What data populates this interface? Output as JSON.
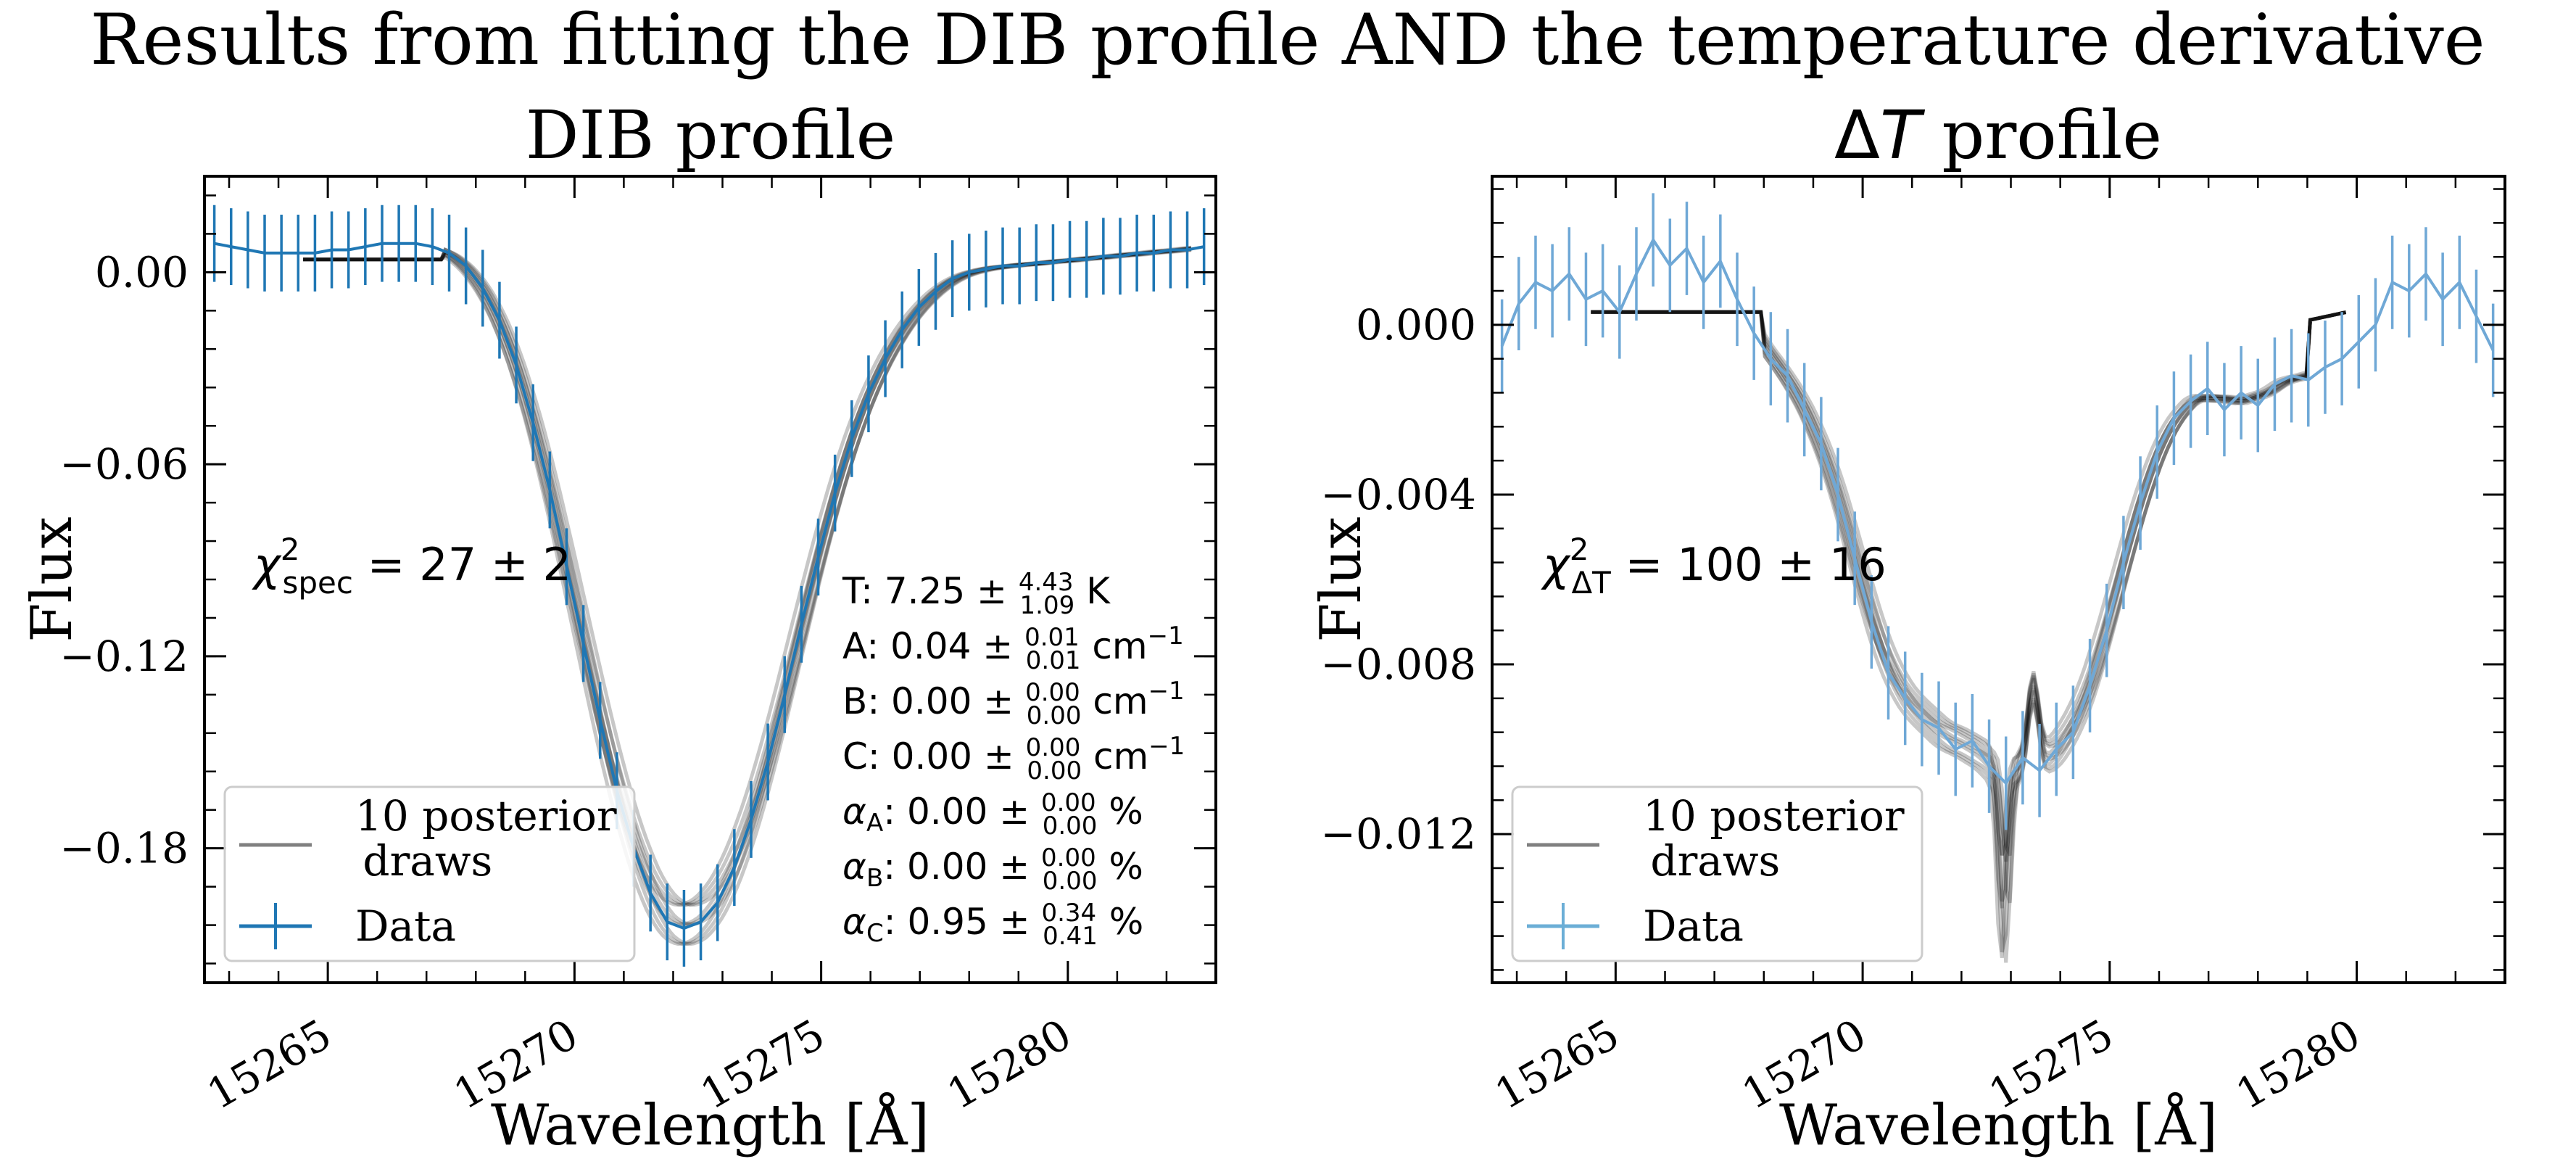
{
  "figure": {
    "suptitle": "Results from fitting the DIB profile AND the temperature derivative"
  },
  "chart_data": [
    {
      "id": "dib",
      "type": "line",
      "title": "DIB profile",
      "xlabel": "Wavelength [Å]",
      "ylabel": "Flux",
      "xlim": [
        15262.5,
        15283.0
      ],
      "ylim": [
        -0.222,
        0.03
      ],
      "xticks": [
        15265,
        15270,
        15275,
        15280
      ],
      "xtick_labels": [
        "15265",
        "15270",
        "15275",
        "15280"
      ],
      "yticks": [
        0.0,
        -0.06,
        -0.12,
        -0.18
      ],
      "ytick_labels": [
        "0.00",
        "−0.06",
        "−0.12",
        "−0.18"
      ],
      "grid": false,
      "legend_position": "lower-left",
      "legend": [
        {
          "label": "10 posterior\n draws",
          "kind": "line",
          "color": "#808080"
        },
        {
          "label": "Data",
          "kind": "errorbar",
          "color": "#1f77b4"
        }
      ],
      "annotation_chi": {
        "sym": "χ",
        "sub": "spec",
        "sup": "2",
        "rest": " = 27 ± 2"
      },
      "params": [
        {
          "sym": "T",
          "sub": "",
          "value": "7.25",
          "up": "4.43",
          "down": "1.09",
          "unit": "K",
          "unit_sup": ""
        },
        {
          "sym": "A",
          "sub": "",
          "value": "0.04",
          "up": "0.01",
          "down": "0.01",
          "unit": "cm",
          "unit_sup": "−1"
        },
        {
          "sym": "B",
          "sub": "",
          "value": "0.00",
          "up": "0.00",
          "down": "0.00",
          "unit": "cm",
          "unit_sup": "−1"
        },
        {
          "sym": "C",
          "sub": "",
          "value": "0.00",
          "up": "0.00",
          "down": "0.00",
          "unit": "cm",
          "unit_sup": "−1"
        },
        {
          "sym": "α",
          "sub": "A",
          "value": "0.00",
          "up": "0.00",
          "down": "0.00",
          "unit": "%",
          "unit_sup": ""
        },
        {
          "sym": "α",
          "sub": "B",
          "value": "0.00",
          "up": "0.00",
          "down": "0.00",
          "unit": "%",
          "unit_sup": ""
        },
        {
          "sym": "α",
          "sub": "C",
          "value": "0.95",
          "up": "0.34",
          "down": "0.41",
          "unit": "%",
          "unit_sup": ""
        }
      ],
      "data_color": "#1f77b4",
      "data_x": [
        15262.7,
        15263.04,
        15263.38,
        15263.72,
        15264.06,
        15264.4,
        15264.74,
        15265.08,
        15265.42,
        15265.76,
        15266.1,
        15266.44,
        15266.78,
        15267.12,
        15267.46,
        15267.8,
        15268.14,
        15268.48,
        15268.82,
        15269.16,
        15269.5,
        15269.84,
        15270.18,
        15270.52,
        15270.86,
        15271.2,
        15271.54,
        15271.88,
        15272.22,
        15272.56,
        15272.9,
        15273.24,
        15273.58,
        15273.92,
        15274.26,
        15274.6,
        15274.94,
        15275.28,
        15275.62,
        15275.96,
        15276.3,
        15276.64,
        15276.98,
        15277.32,
        15277.66,
        15278.0,
        15278.34,
        15278.68,
        15279.02,
        15279.36,
        15279.7,
        15280.04,
        15280.38,
        15280.72,
        15281.06,
        15281.4,
        15281.74,
        15282.08,
        15282.42,
        15282.76
      ],
      "data_y": [
        0.009,
        0.008,
        0.007,
        0.006,
        0.006,
        0.006,
        0.006,
        0.007,
        0.007,
        0.008,
        0.009,
        0.009,
        0.009,
        0.008,
        0.006,
        0.002,
        -0.005,
        -0.015,
        -0.029,
        -0.047,
        -0.068,
        -0.092,
        -0.116,
        -0.14,
        -0.162,
        -0.18,
        -0.194,
        -0.203,
        -0.205,
        -0.203,
        -0.197,
        -0.186,
        -0.171,
        -0.153,
        -0.132,
        -0.11,
        -0.089,
        -0.069,
        -0.052,
        -0.038,
        -0.027,
        -0.018,
        -0.011,
        -0.006,
        -0.002,
        0.0,
        0.001,
        0.002,
        0.002,
        0.003,
        0.003,
        0.004,
        0.004,
        0.005,
        0.005,
        0.006,
        0.006,
        0.007,
        0.007,
        0.008
      ],
      "data_err": 0.012,
      "draws_x_range": [
        15264.5,
        15282.5
      ],
      "draws_count": 10
    },
    {
      "id": "dt",
      "type": "line",
      "title_prefix": "Δ",
      "title_italic": "T",
      "title_suffix": " profile",
      "xlabel": "Wavelength [Å]",
      "ylabel": "Flux",
      "xlim": [
        15262.5,
        15283.0
      ],
      "ylim": [
        -0.0155,
        0.0035
      ],
      "xticks": [
        15265,
        15270,
        15275,
        15280
      ],
      "xtick_labels": [
        "15265",
        "15270",
        "15275",
        "15280"
      ],
      "yticks": [
        0.0,
        -0.004,
        -0.008,
        -0.012
      ],
      "ytick_labels": [
        "0.000",
        "−0.004",
        "−0.008",
        "−0.012"
      ],
      "grid": false,
      "legend_position": "lower-left",
      "legend": [
        {
          "label": "10 posterior\n draws",
          "kind": "line",
          "color": "#808080"
        },
        {
          "label": "Data",
          "kind": "errorbar",
          "color": "#6baed6"
        }
      ],
      "annotation_chi": {
        "sym": "χ",
        "sub": "ΔT",
        "sup": "2",
        "rest": " = 100 ± 16"
      },
      "data_color": "#6fa8d6",
      "data_x": [
        15262.7,
        15263.04,
        15263.38,
        15263.72,
        15264.06,
        15264.4,
        15264.74,
        15265.08,
        15265.42,
        15265.76,
        15266.1,
        15266.44,
        15266.78,
        15267.12,
        15267.46,
        15267.8,
        15268.14,
        15268.48,
        15268.82,
        15269.16,
        15269.5,
        15269.84,
        15270.18,
        15270.52,
        15270.86,
        15271.2,
        15271.54,
        15271.88,
        15272.22,
        15272.56,
        15272.9,
        15273.24,
        15273.58,
        15273.92,
        15274.26,
        15274.6,
        15274.94,
        15275.28,
        15275.62,
        15275.96,
        15276.3,
        15276.64,
        15276.98,
        15277.32,
        15277.66,
        15278.0,
        15278.34,
        15278.68,
        15279.02,
        15279.36,
        15279.7,
        15280.04,
        15280.38,
        15280.72,
        15281.06,
        15281.4,
        15281.74,
        15282.08,
        15282.42,
        15282.76
      ],
      "data_y": [
        -0.0005,
        0.0005,
        0.001,
        0.0008,
        0.0012,
        0.0006,
        0.0008,
        0.0003,
        0.0012,
        0.002,
        0.0014,
        0.0018,
        0.001,
        0.0015,
        0.0006,
        -0.0002,
        -0.0008,
        -0.0012,
        -0.002,
        -0.0028,
        -0.004,
        -0.0055,
        -0.007,
        -0.0082,
        -0.0088,
        -0.0093,
        -0.0095,
        -0.01,
        -0.0098,
        -0.0104,
        -0.0108,
        -0.0102,
        -0.0105,
        -0.01,
        -0.0096,
        -0.0085,
        -0.0072,
        -0.0056,
        -0.0042,
        -0.003,
        -0.0022,
        -0.0018,
        -0.0015,
        -0.002,
        -0.0016,
        -0.0019,
        -0.0014,
        -0.0012,
        -0.0013,
        -0.001,
        -0.0008,
        -0.0004,
        0.0,
        0.001,
        0.0008,
        0.0012,
        0.0006,
        0.001,
        0.0002,
        -0.0006
      ],
      "data_err": 0.0011,
      "draws_x_range": [
        15264.5,
        15279.8
      ],
      "draws_count": 10
    }
  ]
}
